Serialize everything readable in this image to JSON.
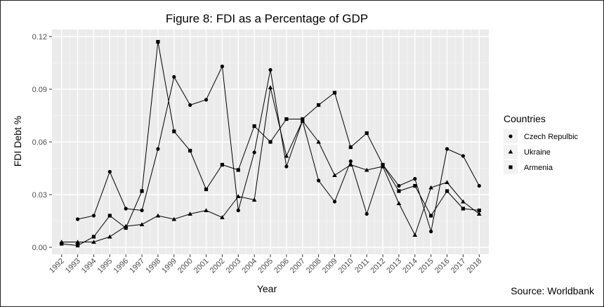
{
  "chart_data": {
    "type": "line",
    "title": "Figure 8: FDI as a Percentage of GDP",
    "xlabel": "Year",
    "ylabel": "FDI Debt %",
    "x": [
      "1992",
      "1993",
      "1994",
      "1995",
      "1996",
      "1997",
      "1998",
      "1999",
      "2000",
      "2001",
      "2002",
      "2003",
      "2004",
      "2005",
      "2006",
      "2007",
      "2008",
      "2009",
      "2010",
      "2011",
      "2012",
      "2013",
      "2014",
      "2015",
      "2016",
      "2017",
      "2018"
    ],
    "ylim": [
      -0.004,
      0.124
    ],
    "yticks": [
      0.0,
      0.03,
      0.06,
      0.09,
      0.12
    ],
    "ytick_labels": [
      "0.00",
      "0.03",
      "0.06",
      "0.09",
      "0.12"
    ],
    "grid": true,
    "legend": {
      "title": "Countries",
      "position": "right"
    },
    "series": [
      {
        "name": "Czech Repulbic",
        "marker": "circle",
        "values": [
          null,
          0.016,
          0.018,
          0.043,
          0.022,
          0.021,
          0.056,
          0.097,
          0.081,
          0.084,
          0.103,
          0.021,
          0.054,
          0.101,
          0.046,
          0.072,
          0.038,
          0.026,
          0.049,
          0.019,
          0.047,
          0.035,
          0.039,
          0.009,
          0.056,
          0.052,
          0.035
        ]
      },
      {
        "name": "Ukraine",
        "marker": "triangle",
        "values": [
          0.003,
          0.003,
          0.003,
          0.006,
          0.012,
          0.013,
          0.018,
          0.016,
          0.019,
          0.021,
          0.017,
          0.029,
          0.027,
          0.091,
          0.052,
          0.072,
          0.06,
          0.041,
          0.047,
          0.044,
          0.046,
          0.025,
          0.007,
          0.034,
          0.037,
          0.026,
          0.019
        ]
      },
      {
        "name": "Armenia",
        "marker": "square",
        "values": [
          0.002,
          0.001,
          0.006,
          0.018,
          0.011,
          0.032,
          0.117,
          0.066,
          0.055,
          0.033,
          0.047,
          0.044,
          0.069,
          0.06,
          0.073,
          0.073,
          0.081,
          0.088,
          0.057,
          0.065,
          0.047,
          0.032,
          0.035,
          0.018,
          0.032,
          0.022,
          0.021
        ]
      }
    ]
  },
  "source_note": "Source: Worldbank"
}
